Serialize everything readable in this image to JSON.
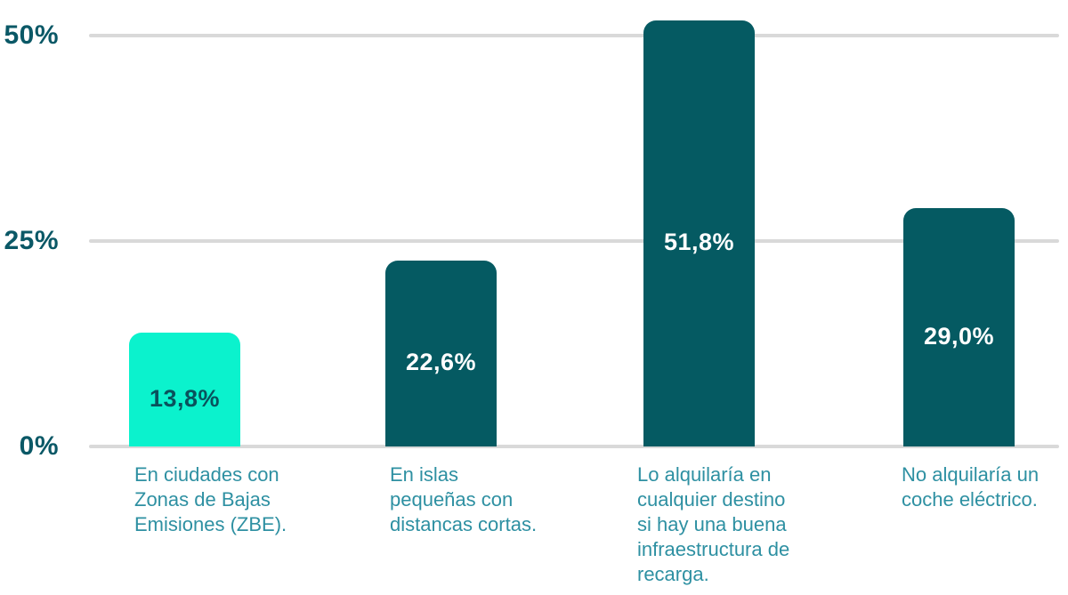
{
  "chart_data": {
    "type": "bar",
    "title": "",
    "xlabel": "",
    "ylabel": "",
    "categories": [
      "En ciudades con\nZonas de Bajas\nEmisiones (ZBE).",
      "En islas\npequeñas con\ndistancas cortas.",
      "Lo alquilaría en\ncualquier destino\nsi hay una buena\ninfraestructura de\nrecarga.",
      "No alquilaría un\ncoche eléctrico."
    ],
    "values": [
      13.8,
      22.6,
      51.8,
      29.0
    ],
    "value_labels": [
      "13,8%",
      "22,6%",
      "51,8%",
      "29,0%"
    ],
    "ylim": [
      0,
      54
    ],
    "yticks": [
      {
        "label": "0%",
        "value": 0
      },
      {
        "label": "25%",
        "value": 25
      },
      {
        "label": "50%",
        "value": 50
      }
    ],
    "grid": true,
    "legend": "none",
    "bar_colors": [
      "#0bf2cd",
      "#055a62",
      "#055a62",
      "#055a62"
    ],
    "value_label_colors": [
      "#09525c",
      "#ffffff",
      "#ffffff",
      "#ffffff"
    ]
  },
  "colors": {
    "background": "#ffffff",
    "gridline": "#d9d9d9",
    "axis_tick": "#0a5866",
    "category_label": "#2e90a2",
    "highlight_bar": "#0bf2cd",
    "primary_bar": "#055a62"
  }
}
